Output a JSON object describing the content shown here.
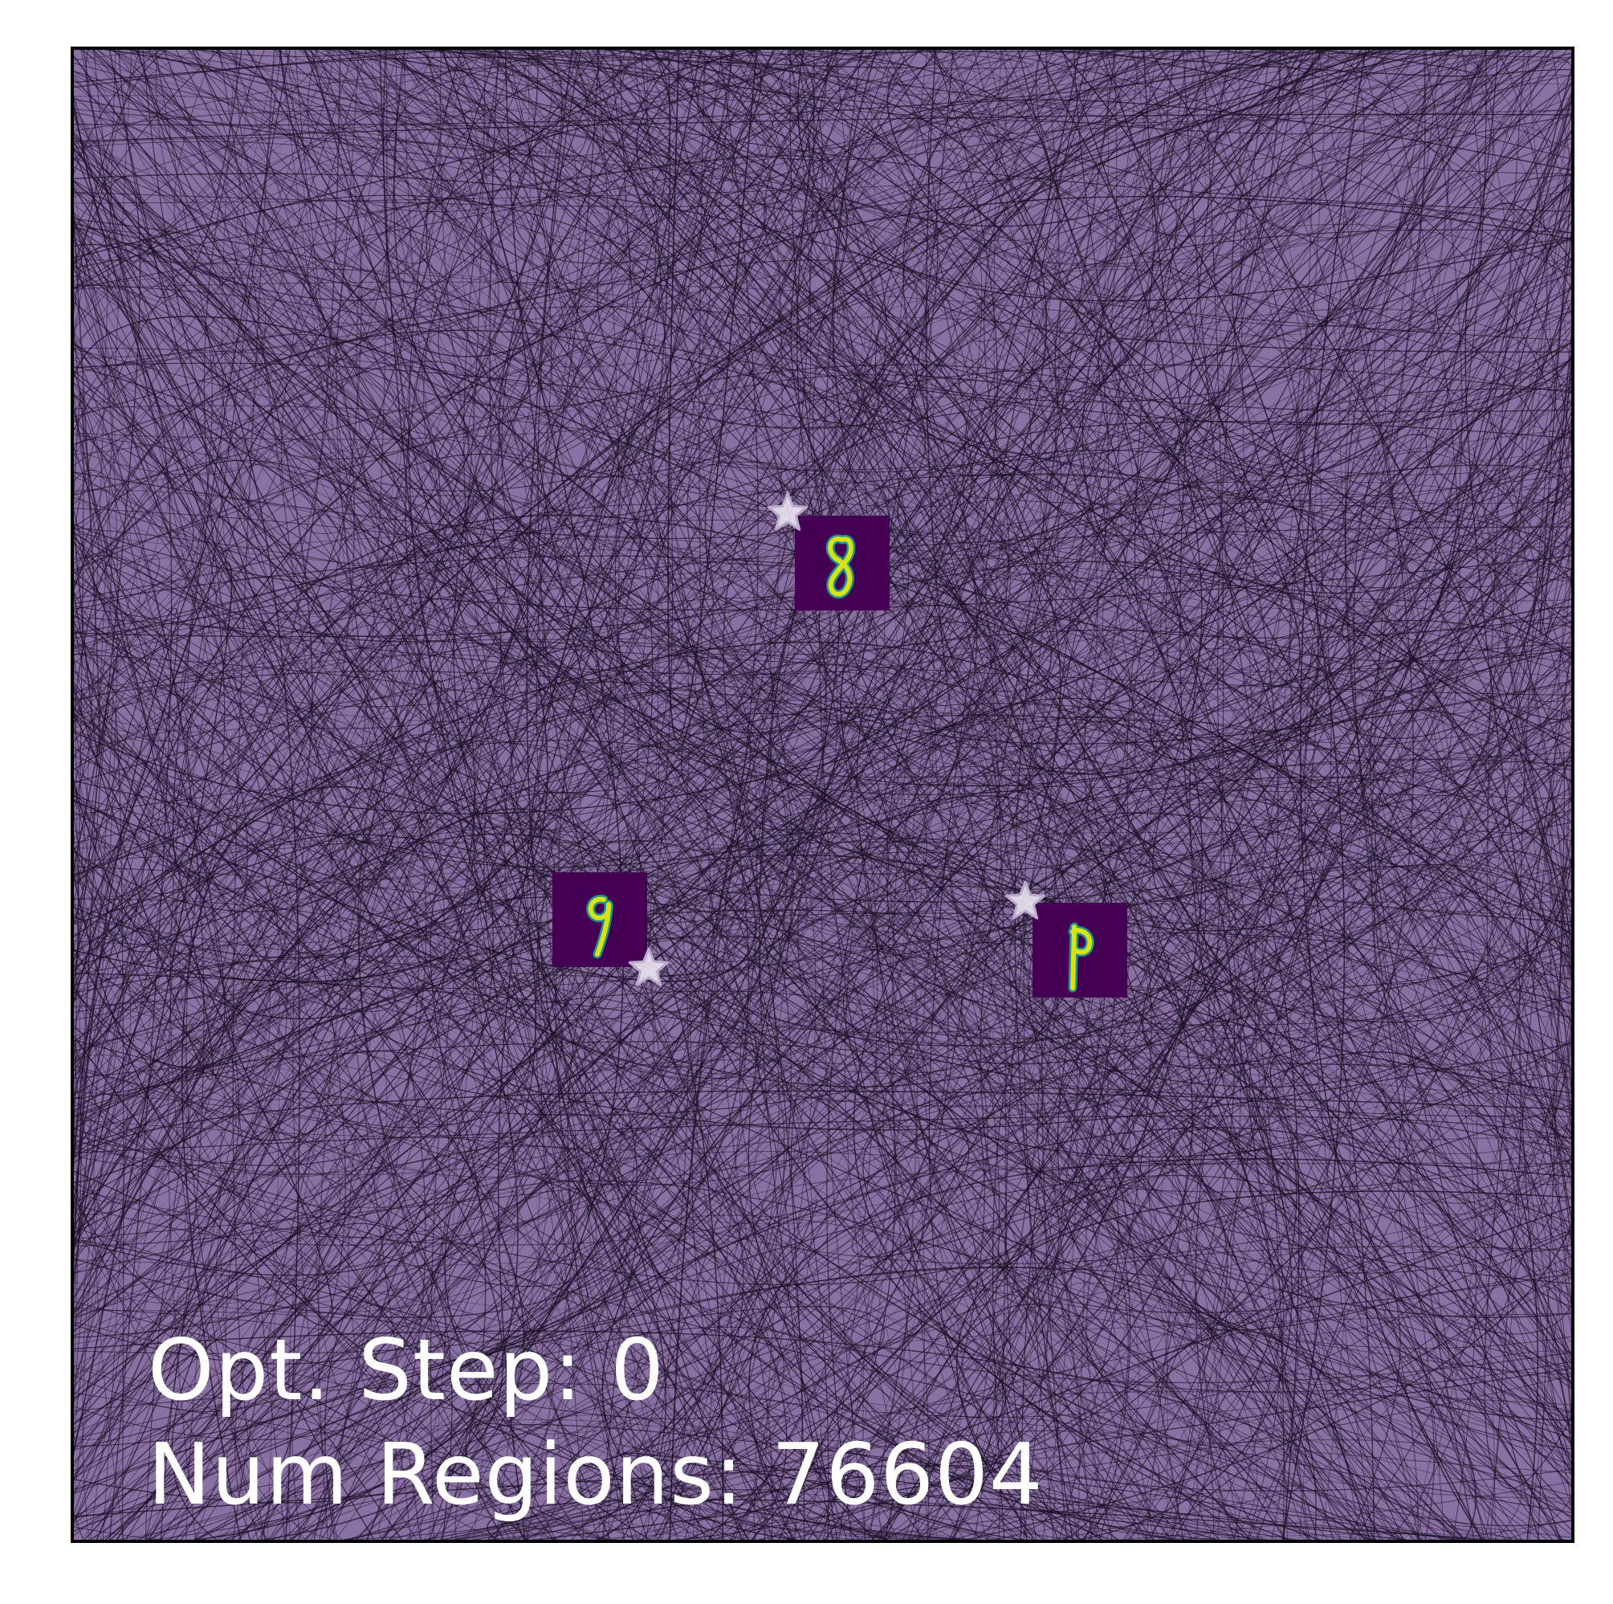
{
  "colors": {
    "region_fill": "#8a71a4",
    "boundary_line": "#1a0f24",
    "frame": "#000000",
    "thumb_background": "#440154",
    "digit_stroke": "#d7e219",
    "digit_edge": "#21918c",
    "star_fill": "#ece6f3",
    "star_edge": "#b9abc9",
    "overlay_text": "#ffffff"
  },
  "digit_samples": [
    {
      "label": "8",
      "star": "star-icon"
    },
    {
      "label": "9",
      "star": "star-icon"
    },
    {
      "label": "9",
      "star": "star-icon"
    }
  ],
  "overlay": {
    "step_label": "Opt. Step:",
    "step_value": "0",
    "regions_label": "Num Regions:",
    "regions_value": "76604"
  }
}
